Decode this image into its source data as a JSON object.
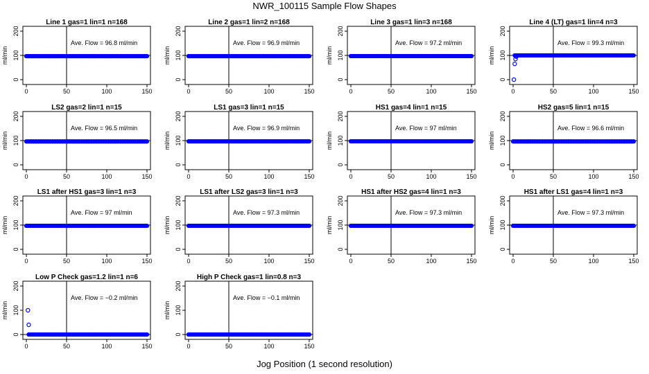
{
  "figure": {
    "title": "NWR_100115  Sample Flow Shapes",
    "xlabel": "Jog Position (1 second resolution)"
  },
  "chart_data": [
    {
      "type": "scatter",
      "title": "Line 1 gas=1 lin=1 n=168",
      "ylabel": "ml/min",
      "annotation": "Ave. Flow =  96.8  ml/min",
      "xlim": [
        0,
        150
      ],
      "ylim": [
        -20,
        220
      ],
      "xticks": [
        0,
        50,
        100,
        150
      ],
      "yticks": [
        0,
        100,
        200
      ],
      "vline": 50,
      "hline": 100,
      "series": [
        {
          "color": "#0000ff",
          "x": [
            0,
            150
          ],
          "y": [
            96.8,
            96.8
          ],
          "style": "dense-band"
        }
      ]
    },
    {
      "type": "scatter",
      "title": "Line 2 gas=1 lin=2 n=168",
      "ylabel": "ml/min",
      "annotation": "Ave. Flow =  96.9  ml/min",
      "xlim": [
        0,
        150
      ],
      "ylim": [
        -20,
        220
      ],
      "xticks": [
        0,
        50,
        100,
        150
      ],
      "yticks": [
        0,
        100,
        200
      ],
      "vline": 50,
      "hline": 100,
      "series": [
        {
          "color": "#0000ff",
          "x": [
            0,
            150
          ],
          "y": [
            96.9,
            96.9
          ],
          "style": "dense-band"
        }
      ]
    },
    {
      "type": "scatter",
      "title": "Line 3 gas=1 lin=3 n=168",
      "ylabel": "ml/min",
      "annotation": "Ave. Flow =  97.2  ml/min",
      "xlim": [
        0,
        150
      ],
      "ylim": [
        -20,
        220
      ],
      "xticks": [
        0,
        50,
        100,
        150
      ],
      "yticks": [
        0,
        100,
        200
      ],
      "vline": 50,
      "hline": 100,
      "series": [
        {
          "color": "#0000ff",
          "x": [
            0,
            150
          ],
          "y": [
            97.2,
            97.2
          ],
          "style": "dense-band"
        }
      ]
    },
    {
      "type": "scatter",
      "title": "Line 4 (LT) gas=1 lin=4 n=3",
      "ylabel": "ml/min",
      "annotation": "Ave. Flow =  99.3  ml/min",
      "xlim": [
        0,
        150
      ],
      "ylim": [
        -20,
        220
      ],
      "xticks": [
        0,
        50,
        100,
        150
      ],
      "yticks": [
        0,
        100,
        200
      ],
      "vline": 50,
      "hline": 100,
      "series": [
        {
          "color": "#0000ff",
          "x": [
            2,
            150
          ],
          "y": [
            100,
            100
          ],
          "style": "dense-band",
          "points": [
            [
              1,
              0
            ],
            [
              2,
              65
            ],
            [
              3,
              85
            ],
            [
              4,
              95
            ]
          ]
        }
      ]
    },
    {
      "type": "scatter",
      "title": "LS2 gas=2 lin=1 n=15",
      "ylabel": "ml/min",
      "annotation": "Ave. Flow =  96.5  ml/min",
      "xlim": [
        0,
        150
      ],
      "ylim": [
        -20,
        220
      ],
      "xticks": [
        0,
        50,
        100,
        150
      ],
      "yticks": [
        0,
        100,
        200
      ],
      "vline": 50,
      "hline": 100,
      "series": [
        {
          "color": "#0000ff",
          "x": [
            0,
            150
          ],
          "y": [
            96.5,
            96.5
          ],
          "style": "dense-band"
        }
      ]
    },
    {
      "type": "scatter",
      "title": "LS1 gas=3 lin=1 n=15",
      "ylabel": "ml/min",
      "annotation": "Ave. Flow =  96.9  ml/min",
      "xlim": [
        0,
        150
      ],
      "ylim": [
        -20,
        220
      ],
      "xticks": [
        0,
        50,
        100,
        150
      ],
      "yticks": [
        0,
        100,
        200
      ],
      "vline": 50,
      "hline": 100,
      "series": [
        {
          "color": "#0000ff",
          "x": [
            0,
            150
          ],
          "y": [
            96.9,
            96.9
          ],
          "style": "dense-band"
        }
      ]
    },
    {
      "type": "scatter",
      "title": "HS1 gas=4 lin=1 n=15",
      "ylabel": "ml/min",
      "annotation": "Ave. Flow =  97  ml/min",
      "xlim": [
        0,
        150
      ],
      "ylim": [
        -20,
        220
      ],
      "xticks": [
        0,
        50,
        100,
        150
      ],
      "yticks": [
        0,
        100,
        200
      ],
      "vline": 50,
      "hline": 100,
      "series": [
        {
          "color": "#0000ff",
          "x": [
            0,
            150
          ],
          "y": [
            97,
            97
          ],
          "style": "dense-band"
        }
      ]
    },
    {
      "type": "scatter",
      "title": "HS2 gas=5 lin=1 n=15",
      "ylabel": "ml/min",
      "annotation": "Ave. Flow =  96.6  ml/min",
      "xlim": [
        0,
        150
      ],
      "ylim": [
        -20,
        220
      ],
      "xticks": [
        0,
        50,
        100,
        150
      ],
      "yticks": [
        0,
        100,
        200
      ],
      "vline": 50,
      "hline": 100,
      "series": [
        {
          "color": "#0000ff",
          "x": [
            0,
            150
          ],
          "y": [
            96.6,
            96.6
          ],
          "style": "dense-band"
        }
      ]
    },
    {
      "type": "scatter",
      "title": "LS1 after HS1 gas=3 lin=1 n=3",
      "ylabel": "ml/min",
      "annotation": "Ave. Flow =  97  ml/min",
      "xlim": [
        0,
        150
      ],
      "ylim": [
        -20,
        220
      ],
      "xticks": [
        0,
        50,
        100,
        150
      ],
      "yticks": [
        0,
        100,
        200
      ],
      "vline": 50,
      "hline": 100,
      "series": [
        {
          "color": "#0000ff",
          "x": [
            0,
            150
          ],
          "y": [
            97,
            97
          ],
          "style": "dense-band"
        }
      ]
    },
    {
      "type": "scatter",
      "title": "LS1 after LS2 gas=3 lin=1 n=3",
      "ylabel": "ml/min",
      "annotation": "Ave. Flow =  97.3  ml/min",
      "xlim": [
        0,
        150
      ],
      "ylim": [
        -20,
        220
      ],
      "xticks": [
        0,
        50,
        100,
        150
      ],
      "yticks": [
        0,
        100,
        200
      ],
      "vline": 50,
      "hline": 100,
      "series": [
        {
          "color": "#0000ff",
          "x": [
            0,
            150
          ],
          "y": [
            97.3,
            97.3
          ],
          "style": "dense-band"
        }
      ]
    },
    {
      "type": "scatter",
      "title": "HS1 after HS2 gas=4 lin=1 n=3",
      "ylabel": "ml/min",
      "annotation": "Ave. Flow =  97.3  ml/min",
      "xlim": [
        0,
        150
      ],
      "ylim": [
        -20,
        220
      ],
      "xticks": [
        0,
        50,
        100,
        150
      ],
      "yticks": [
        0,
        100,
        200
      ],
      "vline": 50,
      "hline": 100,
      "series": [
        {
          "color": "#0000ff",
          "x": [
            0,
            150
          ],
          "y": [
            97.3,
            97.3
          ],
          "style": "dense-band"
        }
      ]
    },
    {
      "type": "scatter",
      "title": "HS1 after LS1 gas=4 lin=1 n=3",
      "ylabel": "ml/min",
      "annotation": "Ave. Flow =  97.3  ml/min",
      "xlim": [
        0,
        150
      ],
      "ylim": [
        -20,
        220
      ],
      "xticks": [
        0,
        50,
        100,
        150
      ],
      "yticks": [
        0,
        100,
        200
      ],
      "vline": 50,
      "hline": 100,
      "series": [
        {
          "color": "#0000ff",
          "x": [
            0,
            150
          ],
          "y": [
            97.3,
            97.3
          ],
          "style": "dense-band"
        }
      ]
    },
    {
      "type": "scatter",
      "title": "Low P Check gas=1.2 lin=1 n=6",
      "ylabel": "ml/min",
      "annotation": "Ave. Flow =  −0.2  ml/min",
      "xlim": [
        0,
        150
      ],
      "ylim": [
        -20,
        220
      ],
      "xticks": [
        0,
        50,
        100,
        150
      ],
      "yticks": [
        0,
        100,
        200
      ],
      "vline": 50,
      "hline": 0,
      "series": [
        {
          "color": "#0000ff",
          "x": [
            3,
            150
          ],
          "y": [
            0,
            0
          ],
          "style": "dense-band",
          "points": [
            [
              2,
              100
            ],
            [
              3,
              40
            ]
          ]
        }
      ]
    },
    {
      "type": "scatter",
      "title": "High P Check gas=1 lin=0.8 n=3",
      "ylabel": "ml/min",
      "annotation": "Ave. Flow =  −0.1  ml/min",
      "xlim": [
        0,
        150
      ],
      "ylim": [
        -20,
        220
      ],
      "xticks": [
        0,
        50,
        100,
        150
      ],
      "yticks": [
        0,
        100,
        200
      ],
      "vline": 50,
      "hline": 0,
      "series": [
        {
          "color": "#0000ff",
          "x": [
            0,
            150
          ],
          "y": [
            -0.1,
            -0.1
          ],
          "style": "dense-band"
        }
      ]
    }
  ]
}
